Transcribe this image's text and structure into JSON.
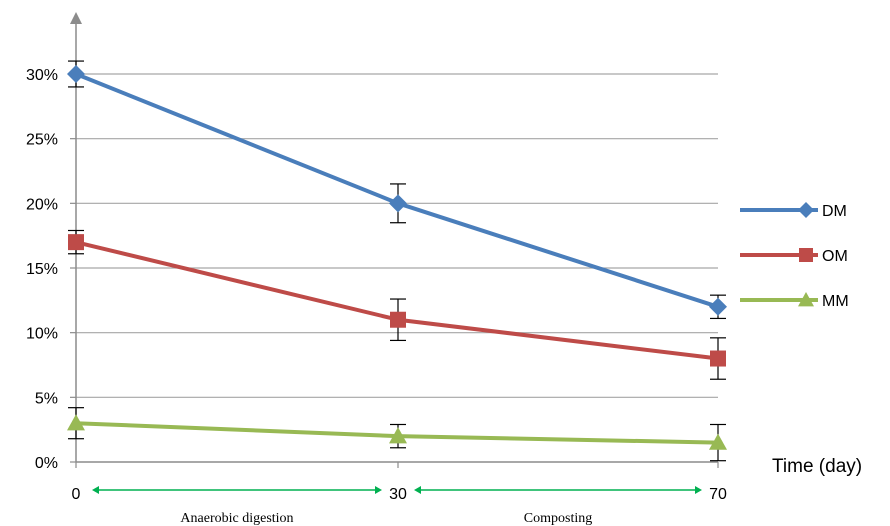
{
  "chart_data": {
    "type": "line",
    "x": [
      0,
      30,
      70
    ],
    "x_tick_labels": [
      "0",
      "30",
      "70"
    ],
    "xlabel": "Time (day)",
    "y_tick_labels": [
      "0%",
      "5%",
      "10%",
      "15%",
      "20%",
      "25%",
      "30%"
    ],
    "ylim": [
      0,
      30
    ],
    "y_unit": "%",
    "grid": "horizontal",
    "legend_position": "right",
    "series": [
      {
        "name": "DM",
        "marker": "diamond",
        "color": "#4a7ebb",
        "values": [
          30,
          20,
          12
        ],
        "error": [
          1,
          1.5,
          0.9
        ]
      },
      {
        "name": "OM",
        "marker": "square",
        "color": "#be4b48",
        "values": [
          17,
          11,
          8
        ],
        "error": [
          0.9,
          1.6,
          1.6
        ]
      },
      {
        "name": "MM",
        "marker": "triangle",
        "color": "#98b954",
        "values": [
          3,
          2,
          1.5
        ],
        "error": [
          1.2,
          0.9,
          1.4
        ]
      }
    ],
    "phases": [
      {
        "label": "Anaerobic digestion",
        "from": 0,
        "to": 30
      },
      {
        "label": "Composting",
        "from": 30,
        "to": 70
      }
    ],
    "phase_arrow_color": "#00b050"
  }
}
